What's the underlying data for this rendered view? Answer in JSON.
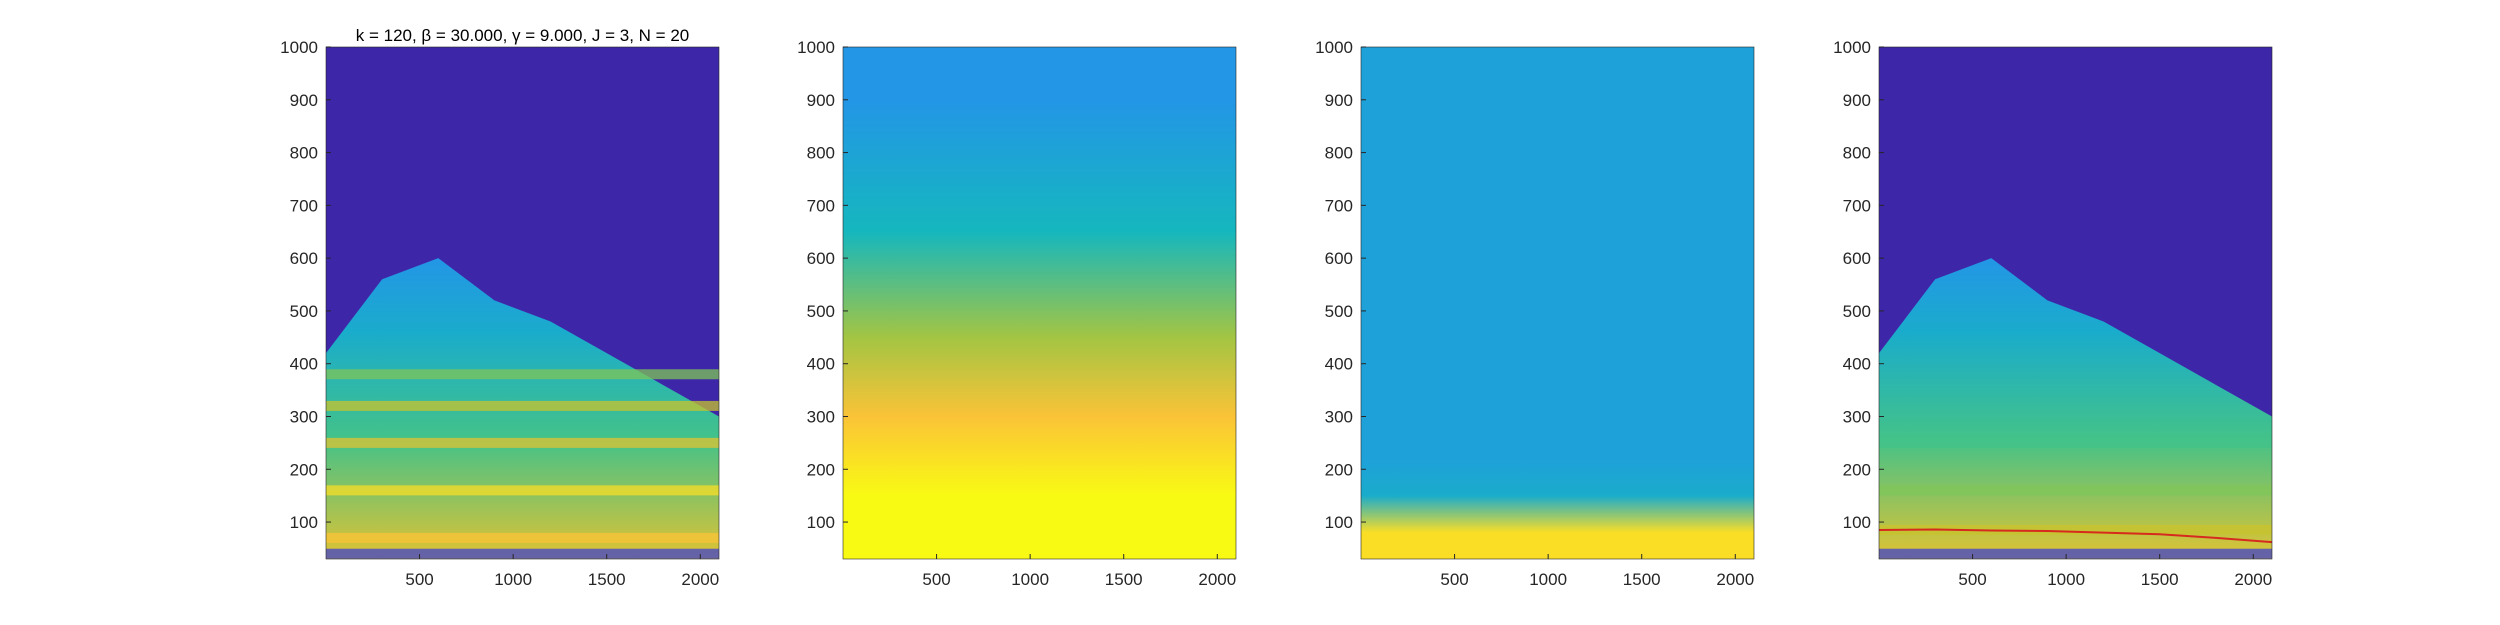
{
  "figure_title": "k = 120, β = 30.000, γ = 9.000, J = 3, N = 20",
  "chart_data": [
    {
      "type": "heatmap",
      "title": "k = 120, β = 30.000, γ = 9.000, J = 3, N = 20",
      "colormap": "parula",
      "xlim": [
        0,
        2100
      ],
      "ylim": [
        30,
        1000
      ],
      "xticks": [
        500,
        1000,
        1500,
        2000
      ],
      "yticks": [
        100,
        200,
        300,
        400,
        500,
        600,
        700,
        800,
        900,
        1000
      ],
      "background_color": "#3e26a8",
      "envelope": {
        "x": [
          0,
          300,
          600,
          900,
          1200,
          1500,
          1800,
          2100
        ],
        "y": [
          420,
          560,
          600,
          520,
          480,
          420,
          360,
          300
        ]
      },
      "bands": [
        {
          "y": 40,
          "value": 0.1
        },
        {
          "y": 70,
          "value": 0.9
        },
        {
          "y": 160,
          "value": 0.95
        },
        {
          "y": 250,
          "value": 0.85
        },
        {
          "y": 320,
          "value": 0.8
        },
        {
          "y": 380,
          "value": 0.7
        }
      ]
    },
    {
      "type": "heatmap",
      "colormap": "parula",
      "xlim": [
        0,
        2100
      ],
      "ylim": [
        30,
        1000
      ],
      "xticks": [
        500,
        1000,
        1500,
        2000
      ],
      "yticks": [
        100,
        200,
        300,
        400,
        500,
        600,
        700,
        800,
        900,
        1000
      ],
      "background_color": "#f0c236",
      "bands": [
        {
          "y": 150,
          "value": 1.0
        },
        {
          "y": 300,
          "value": 0.9
        },
        {
          "y": 450,
          "value": 0.75
        },
        {
          "y": 650,
          "value": 0.5
        },
        {
          "y": 900,
          "value": 0.35
        }
      ]
    },
    {
      "type": "heatmap",
      "colormap": "parula",
      "xlim": [
        0,
        2100
      ],
      "ylim": [
        30,
        1000
      ],
      "xticks": [
        500,
        1000,
        1500,
        2000
      ],
      "yticks": [
        100,
        200,
        300,
        400,
        500,
        600,
        700,
        800,
        900,
        1000
      ],
      "background_color": "#3d5ef2",
      "bands": [
        {
          "y": 80,
          "value": 0.95
        },
        {
          "y": 150,
          "value": 0.45
        },
        {
          "y": 220,
          "value": 0.4
        }
      ]
    },
    {
      "type": "heatmap",
      "colormap": "parula",
      "xlim": [
        0,
        2100
      ],
      "ylim": [
        30,
        1000
      ],
      "xticks": [
        500,
        1000,
        1500,
        2000
      ],
      "yticks": [
        100,
        200,
        300,
        400,
        500,
        600,
        700,
        800,
        900,
        1000
      ],
      "background_color": "#3e26a8",
      "envelope": {
        "x": [
          0,
          300,
          600,
          900,
          1200,
          1500,
          1800,
          2100
        ],
        "y": [
          420,
          560,
          600,
          520,
          480,
          420,
          360,
          300
        ]
      },
      "bands": [
        {
          "y": 40,
          "value": 0.1
        },
        {
          "y": 85,
          "value": 0.8
        },
        {
          "y": 160,
          "value": 0.7
        },
        {
          "y": 250,
          "value": 0.6
        }
      ],
      "ridge_line": {
        "color": "#d62a1e",
        "x": [
          0,
          300,
          600,
          900,
          1200,
          1500,
          1800,
          2100
        ],
        "y": [
          85,
          86,
          84,
          83,
          80,
          77,
          70,
          62
        ]
      }
    }
  ]
}
